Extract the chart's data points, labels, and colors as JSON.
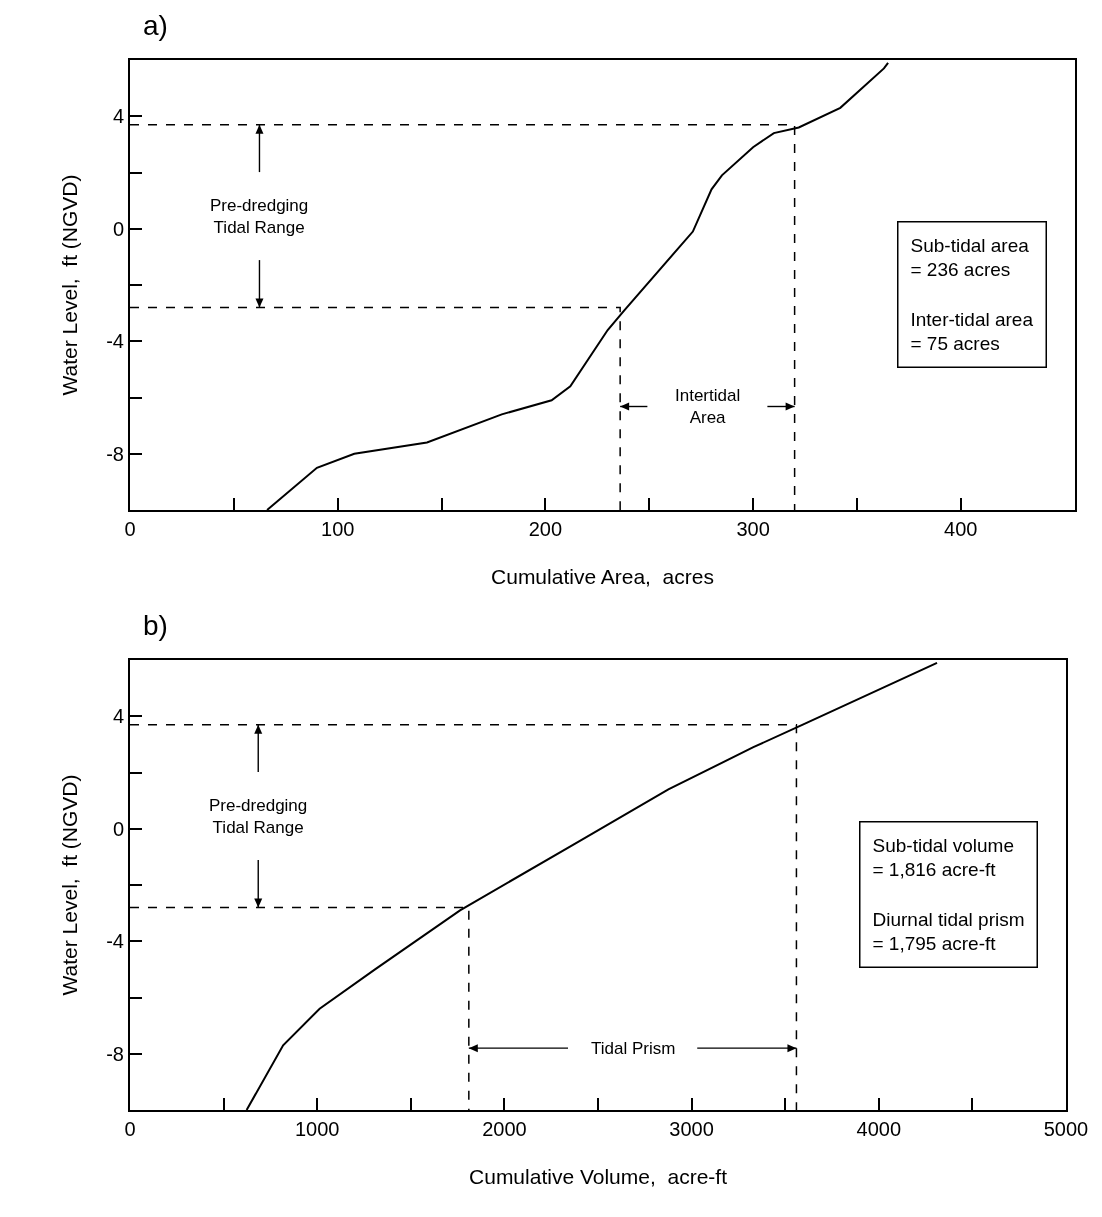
{
  "chart_data": [
    {
      "type": "line",
      "title": "a)",
      "xlabel": "Cumulative Area,  acres",
      "ylabel": "Water Level,  ft (NGVD)",
      "xlim": [
        0,
        455
      ],
      "ylim": [
        -10,
        6
      ],
      "xticks": [
        0,
        {
          "value": 50,
          "label": null
        },
        100,
        {
          "value": 150,
          "label": null
        },
        200,
        {
          "value": 250,
          "label": null
        },
        300,
        {
          "value": 350,
          "label": null
        },
        400
      ],
      "yticks": [
        {
          "value": -10,
          "label": null
        },
        -8,
        {
          "value": -6,
          "label": null
        },
        -4,
        {
          "value": -2,
          "label": null
        },
        0,
        {
          "value": 2,
          "label": null
        },
        4
      ],
      "series": [
        {
          "color": "#000000",
          "x": [
            66,
            90,
            108,
            143,
            179,
            203,
            212,
            230,
            238,
            271,
            280,
            285,
            300,
            310,
            322,
            342,
            363,
            365
          ],
          "values": [
            -10,
            -8.5,
            -8,
            -7.6,
            -6.6,
            -6.1,
            -5.6,
            -3.6,
            -2.9,
            -0.1,
            1.4,
            1.9,
            2.9,
            3.4,
            3.6,
            4.3,
            5.7,
            5.9
          ]
        },
        {
          "color": "#000000",
          "line_style": "dashed",
          "x": [
            0,
            320,
            320
          ],
          "values": [
            3.7,
            3.7,
            -10
          ]
        },
        {
          "color": "#000000",
          "line_style": "dashed",
          "x": [
            0,
            236,
            236
          ],
          "values": [
            -2.8,
            -2.8,
            -10
          ]
        }
      ],
      "annotations": [
        "Pre-dredging\nTidal Range",
        "Intertidal\nArea",
        "Sub-tidal area\n= 236 acres\n\nInter-tidal area\n= 75 acres"
      ]
    },
    {
      "type": "line",
      "title": "b)",
      "xlabel": "Cumulative Volume,  acre-ft",
      "ylabel": "Water Level,  ft (NGVD)",
      "xlim": [
        0,
        5000
      ],
      "ylim": [
        -10,
        6
      ],
      "xticks": [
        0,
        {
          "value": 500,
          "label": null
        },
        1000,
        {
          "value": 1500,
          "label": null
        },
        2000,
        {
          "value": 2500,
          "label": null
        },
        3000,
        {
          "value": 3500,
          "label": null
        },
        4000,
        {
          "value": 4500,
          "label": null
        },
        5000
      ],
      "yticks": [
        {
          "value": -10,
          "label": null
        },
        -8,
        {
          "value": -6,
          "label": null
        },
        -4,
        {
          "value": -2,
          "label": null
        },
        0,
        {
          "value": 2,
          "label": null
        },
        4
      ],
      "series": [
        {
          "color": "#000000",
          "x": [
            623,
            818,
            1013,
            1309,
            1763,
            2385,
            2876,
            3330,
            3594,
            4311
          ],
          "values": [
            -10,
            -7.7,
            -6.4,
            -5,
            -2.9,
            -0.5,
            1.4,
            2.9,
            3.7,
            5.9
          ]
        },
        {
          "color": "#000000",
          "line_style": "dashed",
          "x": [
            0,
            3560,
            3560
          ],
          "values": [
            3.7,
            3.7,
            -10
          ]
        },
        {
          "color": "#000000",
          "line_style": "dashed",
          "x": [
            0,
            1810,
            1810
          ],
          "values": [
            -2.8,
            -2.8,
            -10
          ]
        }
      ],
      "annotations": [
        "Pre-dredging\nTidal Range",
        {
          "text": "Tidal Prism",
          "x": 3560,
          "y": -7.8
        },
        "Sub-tidal volume\n= 1,816 acre-ft\n\nDiurnal tidal prism\n= 1,795 acre-ft"
      ]
    }
  ]
}
